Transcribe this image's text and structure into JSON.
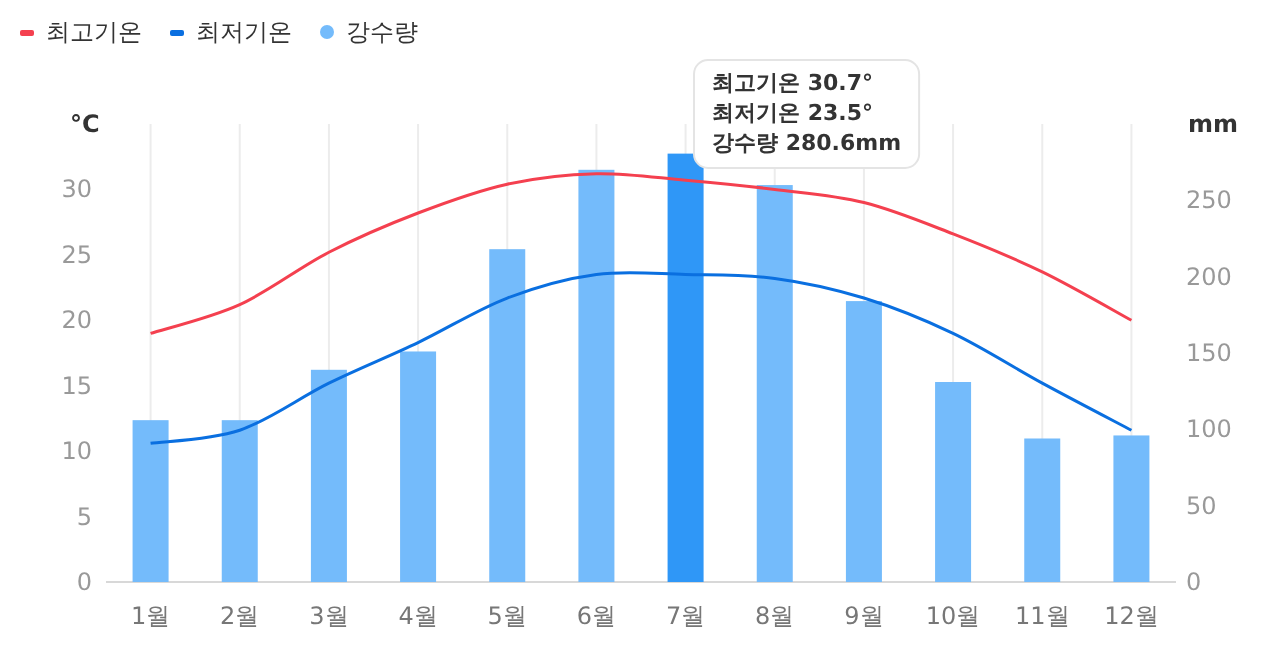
{
  "chart_data": {
    "type": "bar",
    "categories": [
      "1월",
      "2월",
      "3월",
      "4월",
      "5월",
      "6월",
      "7월",
      "8월",
      "9월",
      "10월",
      "11월",
      "12월"
    ],
    "series": [
      {
        "name": "최고기온",
        "type": "line",
        "color": "#f4404f",
        "values": [
          19.0,
          21.2,
          25.2,
          28.2,
          30.4,
          31.2,
          30.7,
          30.0,
          29.0,
          26.6,
          23.7,
          20.0
        ]
      },
      {
        "name": "최저기온",
        "type": "line",
        "color": "#0a6fe0",
        "values": [
          10.6,
          11.6,
          15.2,
          18.3,
          21.7,
          23.5,
          23.5,
          23.2,
          21.7,
          19.0,
          15.2,
          11.6
        ]
      },
      {
        "name": "강수량",
        "axis": "y2",
        "color": "#74bbfb",
        "colors": [
          "#74bbfb",
          "#74bbfb",
          "#74bbfb",
          "#74bbfb",
          "#74bbfb",
          "#74bbfb",
          "#2f97f7",
          "#74bbfb",
          "#74bbfb",
          "#74bbfb",
          "#74bbfb",
          "#74bbfb"
        ],
        "values": [
          106,
          106,
          139,
          151,
          218,
          270,
          280.6,
          260,
          184,
          131,
          94,
          96
        ]
      }
    ],
    "ylabel": "°C",
    "y2label": "mm",
    "ylim": [
      0,
      35
    ],
    "yticks": [
      0,
      5,
      10,
      15,
      20,
      25,
      30
    ],
    "y2lim": [
      0,
      300
    ],
    "y2ticks": [
      0,
      50,
      100,
      150,
      200,
      250
    ],
    "grid": "x",
    "legend": "top left",
    "annotations": [
      "최고기온 30.7°",
      "최저기온 23.5°",
      "강수량 280.6mm"
    ]
  }
}
